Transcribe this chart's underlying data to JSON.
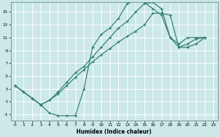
{
  "xlabel": "Humidex (Indice chaleur)",
  "bg_color": "#cce8e8",
  "grid_color": "#ffffff",
  "line_color": "#2e7d6e",
  "xlim": [
    -0.5,
    23.5
  ],
  "ylim": [
    -2.0,
    16.5
  ],
  "xticks": [
    0,
    1,
    2,
    3,
    4,
    5,
    6,
    7,
    8,
    9,
    10,
    11,
    12,
    13,
    14,
    15,
    16,
    17,
    18,
    19,
    20,
    21,
    22,
    23
  ],
  "yticks": [
    -1,
    1,
    3,
    5,
    7,
    9,
    11,
    13,
    15
  ],
  "c1x": [
    0,
    1,
    2,
    3,
    4,
    5,
    6,
    7,
    8,
    9,
    10,
    11,
    12,
    13,
    14,
    15,
    16,
    17,
    18,
    19,
    20,
    21,
    22
  ],
  "c1y": [
    3.5,
    2.5,
    1.5,
    0.5,
    -0.8,
    -1.2,
    -1.2,
    -1.2,
    3.0,
    9.5,
    11.5,
    12.5,
    14.0,
    16.3,
    16.8,
    16.5,
    15.5,
    14.5,
    11.0,
    10.0,
    11.0,
    11.0,
    11.0
  ],
  "c2x": [
    0,
    1,
    2,
    3,
    4,
    5,
    6,
    7,
    8,
    9,
    10,
    11,
    12,
    13,
    14,
    15,
    16,
    17,
    18,
    19,
    20,
    21,
    22
  ],
  "c2y": [
    3.5,
    2.5,
    1.5,
    0.5,
    1.2,
    2.2,
    3.5,
    4.8,
    6.0,
    7.2,
    8.3,
    9.3,
    10.3,
    11.2,
    12.0,
    13.0,
    14.8,
    14.8,
    14.5,
    9.5,
    9.5,
    10.0,
    11.0
  ],
  "c3x": [
    0,
    1,
    2,
    3,
    4,
    5,
    6,
    7,
    8,
    9,
    10,
    11,
    12,
    13,
    14,
    15,
    16,
    17,
    18,
    19,
    20,
    21,
    22
  ],
  "c3y": [
    3.5,
    2.5,
    1.5,
    0.5,
    1.2,
    2.5,
    4.0,
    5.5,
    6.5,
    8.0,
    9.5,
    11.0,
    12.5,
    13.5,
    15.0,
    16.3,
    16.5,
    15.5,
    11.0,
    9.5,
    10.0,
    10.8,
    11.0
  ]
}
